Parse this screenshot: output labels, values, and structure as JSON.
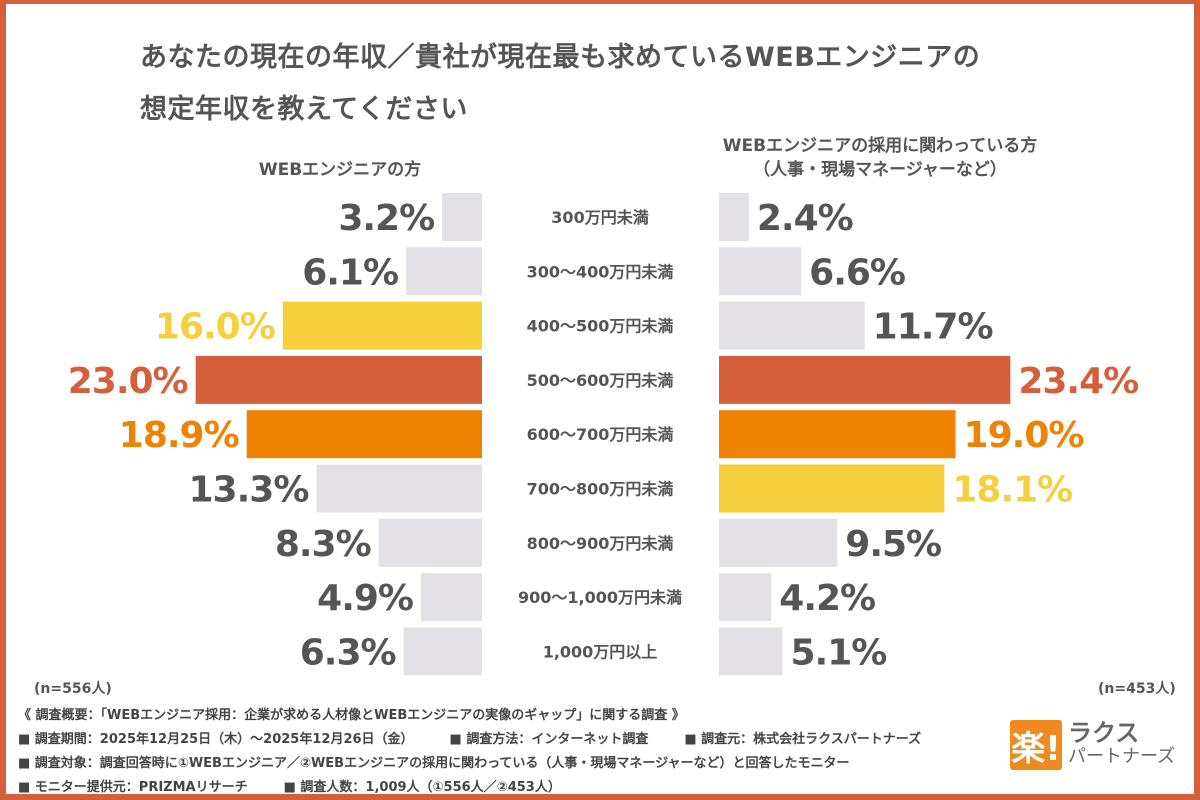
{
  "title_lines": [
    "あなたの現在の年収／貴社が現在最も求めているWEBエンジニアの",
    "想定年収を教えてください"
  ],
  "left_header": "WEBエンジニアの方",
  "right_header": [
    "WEBエンジニアの採用に関わっている方",
    "（人事・現場マネージャーなど）"
  ],
  "left_n": "(n=556人)",
  "right_n": "(n=453人)",
  "colors": {
    "frame": "#d45f3a",
    "gray": "#e3e1e5",
    "red": "#d45f3a",
    "orange": "#ef8200",
    "yellow": "#f5d03c",
    "text": "#555555"
  },
  "chart_data": {
    "type": "bar",
    "orientation": "horizontal-butterfly",
    "categories": [
      "300万円未満",
      "300〜400万円未満",
      "400〜500万円未満",
      "500〜600万円未満",
      "600〜700万円未満",
      "700〜800万円未満",
      "800〜900万円未満",
      "900〜1,000万円未満",
      "1,000万円以上"
    ],
    "series": [
      {
        "name": "WEBエンジニアの方",
        "values": [
          3.2,
          6.1,
          16.0,
          23.0,
          18.9,
          13.3,
          8.3,
          4.9,
          6.3
        ],
        "highlight": [
          "gray",
          "gray",
          "yellow",
          "red",
          "orange",
          "gray",
          "gray",
          "gray",
          "gray"
        ]
      },
      {
        "name": "WEBエンジニアの採用に関わっている方（人事・現場マネージャーなど）",
        "values": [
          2.4,
          6.6,
          11.7,
          23.4,
          19.0,
          18.1,
          9.5,
          4.2,
          5.1
        ],
        "highlight": [
          "gray",
          "gray",
          "gray",
          "red",
          "orange",
          "yellow",
          "gray",
          "gray",
          "gray"
        ]
      }
    ],
    "unit": "%"
  },
  "notes": {
    "summary": "《 調査概要：「WEBエンジニア採用：企業が求める人材像とWEBエンジニアの実像のギャップ」に関する調査 》",
    "period": "■ 調査期間：2025年12月25日（木）〜2025年12月26日（金）",
    "method": "■ 調査方法：インターネット調査",
    "source": "■ 調査元：株式会社ラクスパートナーズ",
    "target": "■ 調査対象：調査回答時に①WEBエンジニア／②WEBエンジニアの採用に関わっている（人事・現場マネージャーなど）と回答したモニター",
    "provider": "■ モニター提供元：PRIZMAリサーチ",
    "count": "■ 調査人数：1,009人（①556人／②453人）"
  },
  "logo": {
    "mark": "楽!",
    "line1": "ラクス",
    "line2": "パートナーズ"
  }
}
